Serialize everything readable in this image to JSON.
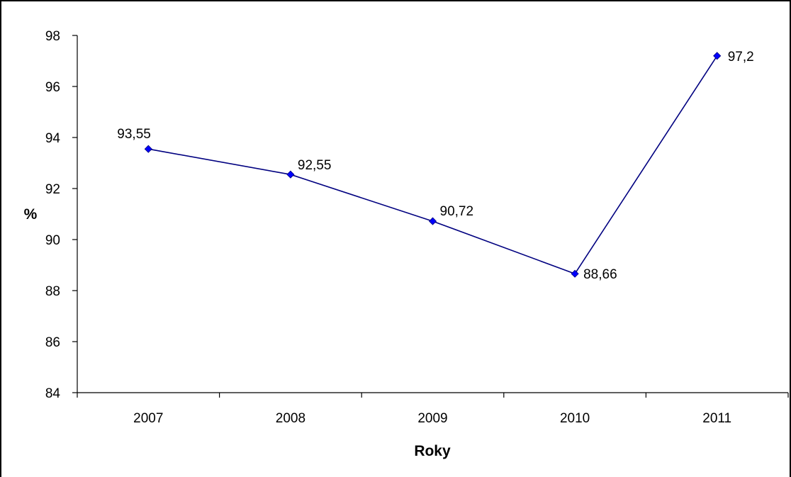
{
  "chart_data": {
    "type": "line",
    "categories": [
      "2007",
      "2008",
      "2009",
      "2010",
      "2011"
    ],
    "series": [
      {
        "values": [
          93.55,
          92.55,
          90.72,
          88.66,
          97.2
        ]
      }
    ],
    "data_labels": [
      "93,55",
      "92,55",
      "90,72",
      "88,66",
      "97,2"
    ],
    "xlabel": "Roky",
    "ylabel": "%",
    "ylim": [
      84,
      98
    ],
    "yticks": [
      84,
      86,
      88,
      90,
      92,
      94,
      96,
      98
    ],
    "grid": false,
    "legend": "none",
    "colors": {
      "line": "#000080",
      "marker": "#0000ff",
      "axis": "#000000"
    }
  }
}
